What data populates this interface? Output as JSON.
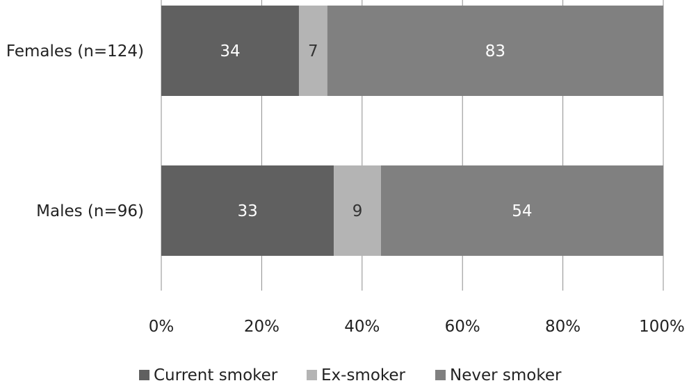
{
  "chart_data": {
    "type": "bar",
    "orientation": "horizontal",
    "stacked": "percent",
    "categories": [
      "Females (n=124)",
      "Males (n=96)"
    ],
    "series": [
      {
        "name": "Current smoker",
        "color": "#606060",
        "values": [
          34,
          33
        ],
        "label_color": "#ffffff"
      },
      {
        "name": "Ex-smoker",
        "color": "#b4b4b4",
        "values": [
          7,
          9
        ],
        "label_color": "#333333"
      },
      {
        "name": "Never smoker",
        "color": "#808080",
        "values": [
          83,
          54
        ],
        "label_color": "#ffffff"
      }
    ],
    "x_ticks": [
      "0%",
      "20%",
      "40%",
      "60%",
      "80%",
      "100%"
    ],
    "xlim": [
      0,
      100
    ],
    "grid": true,
    "legend_position": "bottom",
    "title": "",
    "xlabel": "",
    "ylabel": ""
  }
}
